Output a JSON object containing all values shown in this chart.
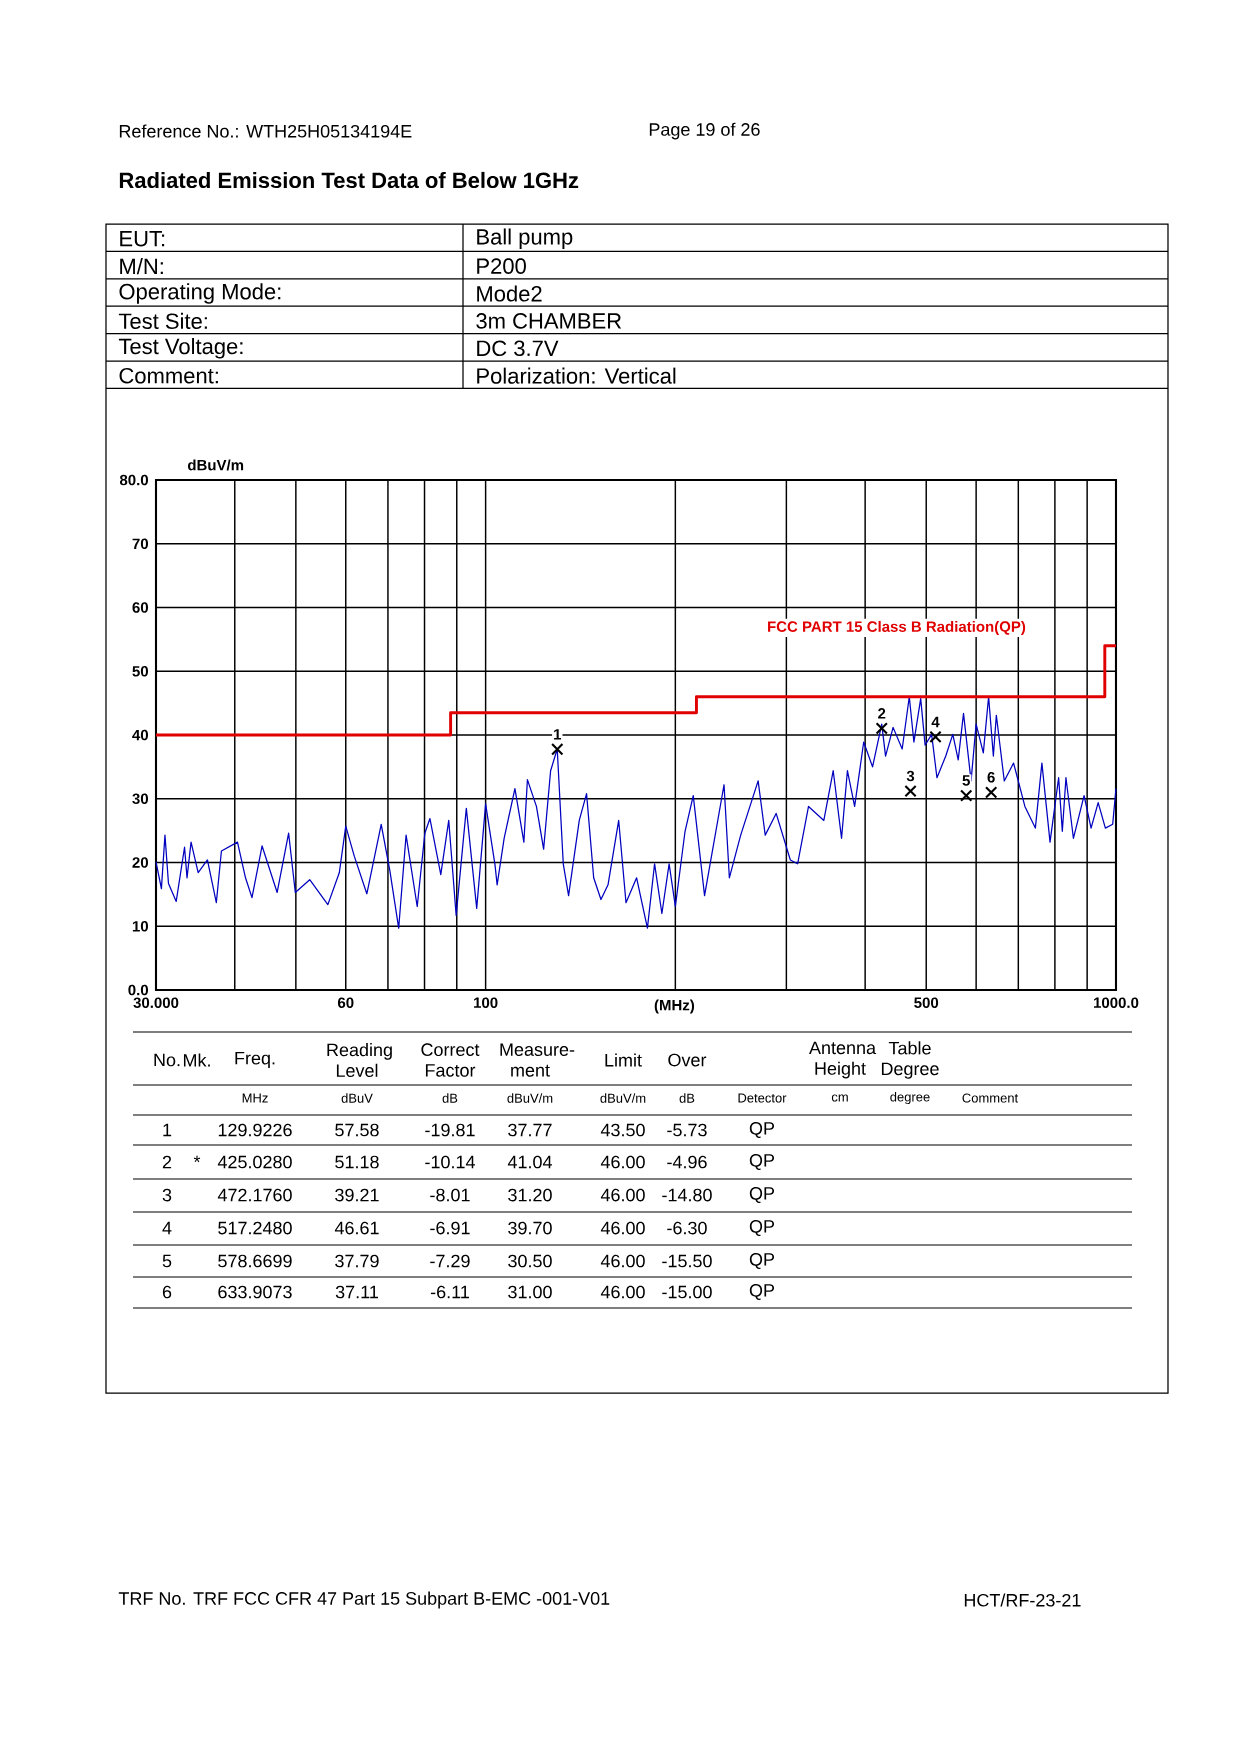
{
  "chart_data": {
    "type": "line",
    "title": "Radiated Emission Test Data of Below 1GHz",
    "xlabel": "(MHz)",
    "ylabel": "dBuV/m",
    "log": "x",
    "grid": true,
    "xlim": [
      30,
      1000
    ],
    "xticks": [
      {
        "value": 30,
        "label": "30.000"
      },
      {
        "value": 40,
        "label": null
      },
      {
        "value": 50,
        "label": null
      },
      60,
      {
        "value": 70,
        "label": null
      },
      {
        "value": 80,
        "label": null
      },
      {
        "value": 90,
        "label": null
      },
      100,
      {
        "value": 200,
        "label": null
      },
      {
        "value": 300,
        "label": null
      },
      {
        "value": 400,
        "label": null
      },
      500,
      {
        "value": 600,
        "label": null
      },
      {
        "value": 700,
        "label": null
      },
      {
        "value": 800,
        "label": null
      },
      {
        "value": 900,
        "label": null
      },
      {
        "value": 1000,
        "label": "1000.0"
      }
    ],
    "ylim": [
      0,
      80
    ],
    "yticks": [
      {
        "value": 0,
        "label": "0.0"
      },
      10,
      20,
      30,
      40,
      50,
      60,
      70,
      {
        "value": 80,
        "label": "80.0"
      }
    ],
    "series": [
      {
        "color": "#0000c0",
        "x": [
          30,
          30.6,
          31.0,
          31.4,
          32.3,
          33.3,
          33.6,
          34.1,
          35.0,
          36.2,
          37.4,
          38.1,
          40.4,
          41.6,
          42.6,
          44.2,
          46.7,
          48.7,
          49.9,
          52.6,
          56.2,
          58.6,
          60.0,
          61.9,
          64.8,
          68.3,
          70.5,
          72.8,
          74.8,
          77.9,
          80.1,
          81.6,
          84.9,
          87.4,
          89.8,
          93.2,
          96.8,
          100,
          103.5,
          104.3,
          107,
          111.3,
          115,
          116.5,
          120.4,
          123.6,
          126.8,
          129.9,
          132.8,
          135.4,
          140.8,
          144.6,
          148.4,
          152.4,
          156.4,
          162.6,
          167,
          173.6,
          180.6,
          185.4,
          190.4,
          195.5,
          200,
          207.2,
          213.5,
          222.5,
          238.9,
          243.6,
          253.9,
          270.6,
          277.7,
          289,
          304.4,
          312.6,
          325.3,
          344,
          356,
          367,
          375,
          385,
          398,
          411,
          425,
          431,
          443,
          458,
          470,
          478,
          490,
          498,
          510,
          520,
          537,
          551,
          562,
          573,
          589,
          600,
          616,
          628,
          639,
          646,
          665,
          688,
          717,
          745,
          763,
          786,
          811,
          822,
          833,
          856,
          890,
          913,
          937,
          962,
          988,
          1000
        ],
        "values": [
          20.1,
          15.9,
          24.3,
          16.7,
          13.9,
          22.4,
          17.6,
          23.2,
          18.4,
          20.4,
          13.7,
          21.8,
          23.2,
          17.6,
          14.5,
          22.6,
          15.3,
          24.6,
          15.3,
          17.3,
          13.4,
          18.4,
          25.7,
          21.0,
          15.1,
          26.0,
          18.7,
          9.7,
          24.3,
          13.1,
          24.6,
          26.9,
          18.1,
          26.6,
          11.7,
          28.5,
          12.8,
          29.2,
          19.6,
          16.5,
          23.8,
          31.6,
          23.2,
          33.0,
          28.8,
          22.1,
          34.4,
          37.8,
          19.8,
          14.8,
          26.6,
          30.8,
          17.6,
          14.2,
          16.5,
          26.6,
          13.7,
          17.6,
          9.7,
          19.8,
          12.0,
          19.8,
          13.1,
          24.9,
          30.5,
          14.8,
          32.2,
          17.6,
          24.3,
          32.8,
          24.3,
          27.7,
          20.4,
          19.8,
          28.8,
          26.6,
          34.4,
          23.8,
          34.4,
          28.8,
          38.9,
          35.0,
          41.7,
          36.7,
          41.2,
          37.8,
          46.0,
          38.9,
          45.7,
          38.4,
          40.1,
          33.3,
          36.7,
          40.1,
          36.1,
          43.4,
          32.8,
          41.7,
          37.2,
          46.0,
          36.7,
          43.1,
          32.8,
          35.6,
          28.8,
          25.4,
          35.6,
          23.2,
          33.3,
          24.9,
          33.3,
          23.8,
          30.5,
          25.4,
          29.4,
          25.4,
          26.0,
          31.6
        ]
      },
      {
        "type": "step",
        "name": "FCC PART 15 Class B Radiation(QP)",
        "color": "#e00000",
        "x": [
          30,
          88,
          216,
          960,
          1000
        ],
        "values": [
          40,
          43.5,
          46,
          54,
          54
        ]
      },
      {
        "type": "scatter",
        "marker": "cross",
        "color": "#000000",
        "x": [
          129.9226,
          425.028,
          472.176,
          517.248,
          578.6699,
          633.9073
        ],
        "values": [
          37.77,
          41.04,
          31.2,
          39.7,
          30.5,
          31.0
        ]
      }
    ],
    "annotations": [
      "Reference No.: WTH25H05134194E",
      "Page 19 of 26",
      "EUT:",
      "Ball pump",
      "M/N:",
      "P200",
      "Operating Mode:",
      "Mode2",
      "Test Site:",
      "3m CHAMBER",
      "Test Voltage:",
      "DC 3.7V",
      "Comment:",
      "Polarization: Vertical",
      "TRF No. TRF FCC CFR 47 Part 15 Subpart B-EMC -001-V01",
      "HCT/RF-23-21",
      "No.",
      "Mk.",
      "Freq.",
      "Reading Level",
      "Correct Factor",
      "Measure-ment",
      "Limit",
      "Over",
      "Antenna Height",
      "Table Degree",
      "MHz",
      "dBuV",
      "dB",
      "dBuV/m",
      "dBuV/m",
      "dB",
      "Detector",
      "cm",
      "degree",
      "Comment",
      "1",
      "129.9226",
      "57.58",
      "-19.81",
      "37.77",
      "43.50",
      "-5.73",
      "QP",
      "2",
      "*",
      "425.0280",
      "51.18",
      "-10.14",
      "41.04",
      "46.00",
      "-4.96",
      "QP",
      "3",
      "472.1760",
      "39.21",
      "-8.01",
      "31.20",
      "46.00",
      "-14.80",
      "QP",
      "4",
      "517.2480",
      "46.61",
      "-6.91",
      "39.70",
      "46.00",
      "-6.30",
      "QP",
      "5",
      "578.6699",
      "37.79",
      "-7.29",
      "30.50",
      "46.00",
      "-15.50",
      "QP",
      "6",
      "633.9073",
      "37.11",
      "-6.11",
      "31.00",
      "46.00",
      "-15.00",
      "QP",
      {
        "text": "1",
        "x": 129.9226,
        "y": 37.77
      },
      {
        "text": "2",
        "x": 425.028,
        "y": 41.04
      },
      {
        "text": "3",
        "x": 472.176,
        "y": 31.2
      },
      {
        "text": "4",
        "x": 517.248,
        "y": 39.7
      },
      {
        "text": "5",
        "x": 578.6699,
        "y": 30.5
      },
      {
        "text": "6",
        "x": 633.9073,
        "y": 31.0
      }
    ]
  }
}
